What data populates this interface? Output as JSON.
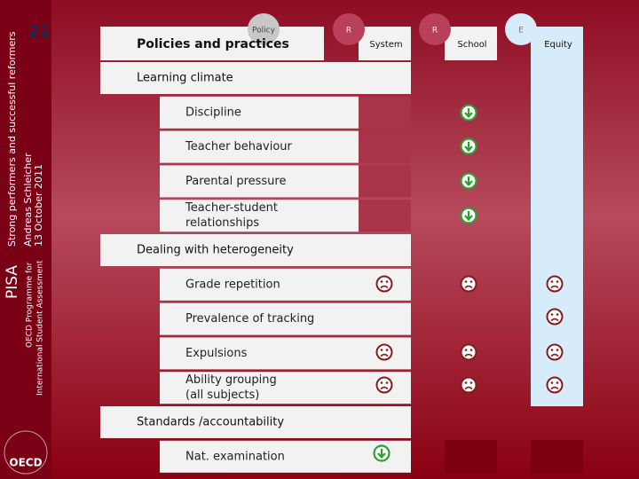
{
  "sidebar": {
    "page_number": "21",
    "title": "Strong performers and successful reformers",
    "author": "Andreas Schleicher",
    "date": "13 October 2011",
    "brand": "PISA",
    "programme": [
      "OECD Programme for",
      "International Student Assessment"
    ],
    "logo": "OECD"
  },
  "header": {
    "badges": [
      "Policy",
      "R",
      "R",
      "E"
    ],
    "heading": "Policies and practices",
    "columns": [
      "System",
      "School",
      "Equity"
    ]
  },
  "sections": [
    {
      "title": "Learning climate",
      "items": [
        [
          "Discipline"
        ],
        [
          "Teacher behaviour"
        ],
        [
          "Parental pressure"
        ],
        [
          "Teacher-student",
          "relationships"
        ]
      ]
    },
    {
      "title": "Dealing with heterogeneity",
      "items": [
        [
          "Grade repetition"
        ],
        [
          "Prevalence of tracking"
        ],
        [
          "Expulsions"
        ],
        [
          "Ability grouping",
          "(all subjects)"
        ]
      ]
    },
    {
      "title": "Standards /accountability",
      "items": [
        [
          "Nat. examination"
        ]
      ]
    }
  ]
}
